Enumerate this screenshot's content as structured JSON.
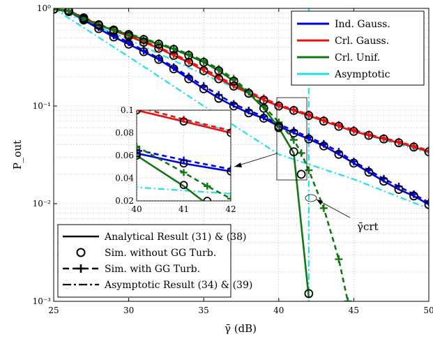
{
  "chart_data": {
    "type": "line",
    "title": "",
    "xlabel": "γ̄ (dB)",
    "ylabel": "P_out",
    "xlim": [
      25,
      50
    ],
    "ylim": [
      0.001,
      1
    ],
    "yscale": "log",
    "grid": true,
    "xticks": [
      "25",
      "30",
      "35",
      "40",
      "45",
      "50"
    ],
    "yticks": [
      "10⁰",
      "10⁻¹",
      "10⁻²",
      "10⁻³"
    ],
    "legend_top_placement": "top-right",
    "legend_top": [
      {
        "label": "Ind. Gauss.",
        "color": "#0000dd"
      },
      {
        "label": "Crl. Gauss.",
        "color": "#ee1111"
      },
      {
        "label": "Crl. Unif.",
        "color": "#117711"
      },
      {
        "label": "Asymptotic",
        "color": "#22e0e8"
      }
    ],
    "legend_bottom_placement": "bottom-left",
    "legend_bottom": [
      {
        "label": "Analytical Result (31) & (38)",
        "style": "solid"
      },
      {
        "label": "Sim. without GG Turb.",
        "style": "circle"
      },
      {
        "label": "Sim. with GG Turb.",
        "style": "dashed-plus"
      },
      {
        "label": "Asymptotic Result (34) & (39)",
        "style": "dashdot"
      }
    ],
    "annotation": "γ̄crt",
    "series": [
      {
        "key": "ind_analytical",
        "color": "#0000dd",
        "style": "solid",
        "x": [
          25,
          26,
          27,
          28,
          29,
          30,
          31,
          32,
          33,
          34,
          35,
          36,
          37,
          38,
          39,
          40,
          41,
          42,
          43,
          44,
          45,
          46,
          47,
          48,
          49,
          50
        ],
        "y": [
          0.98,
          0.93,
          0.76,
          0.62,
          0.51,
          0.43,
          0.36,
          0.3,
          0.24,
          0.19,
          0.15,
          0.12,
          0.1,
          0.085,
          0.075,
          0.062,
          0.053,
          0.046,
          0.039,
          0.032,
          0.026,
          0.021,
          0.017,
          0.014,
          0.012,
          0.0098
        ]
      },
      {
        "key": "ind_sim_no_gg",
        "color": "#0000dd",
        "style": "circles",
        "x": [
          25,
          26,
          27,
          28,
          29,
          30,
          31,
          32,
          33,
          34,
          35,
          36,
          37,
          38,
          39,
          40,
          41,
          42,
          43,
          44,
          45,
          46,
          47,
          48,
          49,
          50
        ],
        "y": [
          0.98,
          0.93,
          0.76,
          0.62,
          0.51,
          0.43,
          0.36,
          0.3,
          0.24,
          0.19,
          0.15,
          0.12,
          0.1,
          0.085,
          0.075,
          0.062,
          0.053,
          0.046,
          0.039,
          0.032,
          0.026,
          0.021,
          0.017,
          0.014,
          0.012,
          0.0098
        ]
      },
      {
        "key": "ind_sim_gg",
        "color": "#0000dd",
        "style": "dashed-plus",
        "x": [
          25,
          26,
          27,
          28,
          29,
          30,
          31,
          32,
          33,
          34,
          35,
          36,
          37,
          38,
          39,
          40,
          41,
          42,
          43,
          44,
          45,
          46,
          47,
          48,
          49,
          50
        ],
        "y": [
          0.98,
          0.94,
          0.79,
          0.64,
          0.53,
          0.45,
          0.37,
          0.31,
          0.25,
          0.2,
          0.16,
          0.13,
          0.105,
          0.09,
          0.078,
          0.065,
          0.056,
          0.048,
          0.041,
          0.034,
          0.027,
          0.022,
          0.018,
          0.015,
          0.0125,
          0.0103
        ]
      },
      {
        "key": "crl_gauss_analytical",
        "color": "#ee1111",
        "style": "solid",
        "x": [
          25,
          26,
          27,
          28,
          29,
          30,
          31,
          32,
          33,
          34,
          35,
          36,
          37,
          38,
          39,
          40,
          41,
          42,
          43,
          44,
          45,
          46,
          47,
          48,
          49,
          50
        ],
        "y": [
          0.98,
          0.95,
          0.8,
          0.68,
          0.59,
          0.52,
          0.45,
          0.39,
          0.33,
          0.28,
          0.23,
          0.19,
          0.16,
          0.135,
          0.115,
          0.1,
          0.09,
          0.08,
          0.07,
          0.062,
          0.055,
          0.05,
          0.046,
          0.042,
          0.038,
          0.034
        ]
      },
      {
        "key": "crl_gauss_sim_no_gg",
        "color": "#ee1111",
        "style": "circles",
        "x": [
          25,
          26,
          27,
          28,
          29,
          30,
          31,
          32,
          33,
          34,
          35,
          36,
          37,
          38,
          39,
          40,
          41,
          42,
          43,
          44,
          45,
          46,
          47,
          48,
          49,
          50
        ],
        "y": [
          0.98,
          0.95,
          0.8,
          0.68,
          0.59,
          0.52,
          0.45,
          0.39,
          0.33,
          0.28,
          0.23,
          0.19,
          0.16,
          0.135,
          0.115,
          0.1,
          0.09,
          0.08,
          0.07,
          0.062,
          0.055,
          0.05,
          0.046,
          0.042,
          0.038,
          0.034
        ]
      },
      {
        "key": "crl_gauss_sim_gg",
        "color": "#ee1111",
        "style": "dashed-plus",
        "x": [
          25,
          26,
          27,
          28,
          29,
          30,
          31,
          32,
          33,
          34,
          35,
          36,
          37,
          38,
          39,
          40,
          41,
          42,
          43,
          44,
          45,
          46,
          47,
          48,
          49,
          50
        ],
        "y": [
          0.98,
          0.95,
          0.81,
          0.69,
          0.6,
          0.53,
          0.46,
          0.4,
          0.34,
          0.29,
          0.24,
          0.2,
          0.165,
          0.14,
          0.12,
          0.103,
          0.092,
          0.082,
          0.072,
          0.064,
          0.057,
          0.051,
          0.047,
          0.043,
          0.039,
          0.035
        ]
      },
      {
        "key": "crl_unif_analytical",
        "color": "#117711",
        "style": "solid",
        "x": [
          25,
          26,
          27,
          28,
          29,
          30,
          31,
          32,
          33,
          34,
          35,
          36,
          37,
          38,
          39,
          40,
          41,
          42
        ],
        "y": [
          0.98,
          0.93,
          0.78,
          0.67,
          0.6,
          0.54,
          0.48,
          0.43,
          0.38,
          0.33,
          0.28,
          0.23,
          0.18,
          0.135,
          0.095,
          0.06,
          0.033,
          0.0011
        ]
      },
      {
        "key": "crl_unif_sim_no_gg",
        "color": "#117711",
        "style": "circles",
        "x": [
          25,
          26,
          27,
          28,
          29,
          30,
          31,
          32,
          33,
          34,
          35,
          36,
          37,
          38,
          39,
          40,
          41,
          41.5,
          42
        ],
        "y": [
          0.98,
          0.93,
          0.78,
          0.67,
          0.6,
          0.54,
          0.48,
          0.43,
          0.38,
          0.33,
          0.28,
          0.23,
          0.18,
          0.135,
          0.095,
          0.06,
          0.034,
          0.02,
          0.0012
        ]
      },
      {
        "key": "crl_unif_sim_gg",
        "color": "#117711",
        "style": "dashed-plus",
        "x": [
          25,
          26,
          27,
          28,
          29,
          30,
          31,
          32,
          33,
          34,
          35,
          36,
          37,
          38,
          39,
          40,
          41,
          41.5,
          42,
          43,
          44,
          44.6
        ],
        "y": [
          0.98,
          0.94,
          0.8,
          0.68,
          0.61,
          0.55,
          0.49,
          0.44,
          0.39,
          0.34,
          0.29,
          0.24,
          0.19,
          0.14,
          0.1,
          0.068,
          0.045,
          0.033,
          0.022,
          0.009,
          0.0027,
          0.001
        ]
      },
      {
        "key": "asym_ind",
        "color": "#22e0e8",
        "style": "dashdot",
        "x": [
          25,
          30,
          35,
          40,
          45,
          50
        ],
        "y": [
          1.0,
          0.32,
          0.1,
          0.032,
          0.0178,
          0.0089
        ]
      },
      {
        "key": "asym_crl_gauss",
        "color": "#22e0e8",
        "style": "dashdot",
        "x": [
          25,
          30,
          35,
          40,
          45,
          50
        ],
        "y": [
          1.0,
          0.48,
          0.21,
          0.1,
          0.055,
          0.033
        ]
      },
      {
        "key": "asym_unif_vertical",
        "color": "#22e0e8",
        "style": "dashdot",
        "x": [
          42,
          42
        ],
        "y": [
          1.0,
          0.001
        ]
      }
    ],
    "inset": {
      "xlim": [
        40,
        42
      ],
      "ylim": [
        0.02,
        0.1
      ],
      "xticks": [
        "40",
        "41",
        "42"
      ],
      "yticks": [
        "0.1",
        "0.08",
        "0.06",
        "0.04",
        "0.02"
      ]
    }
  }
}
